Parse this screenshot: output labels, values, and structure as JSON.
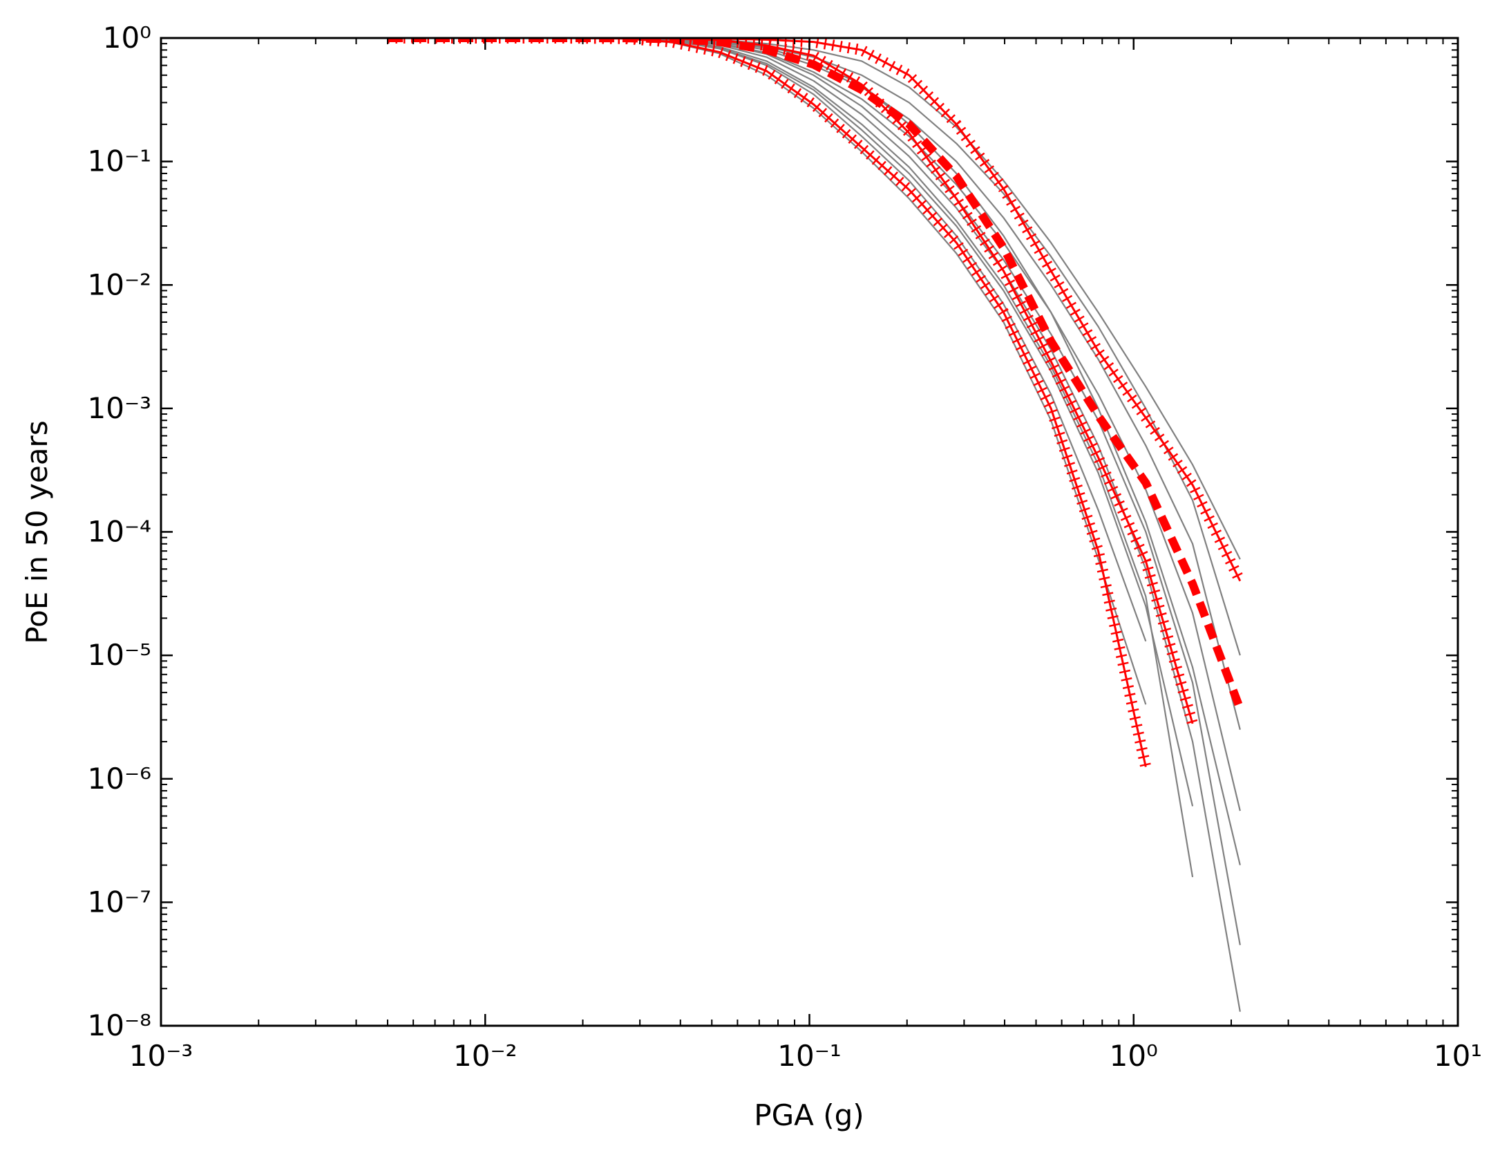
{
  "chart_data": {
    "type": "line",
    "xlabel": "PGA (g)",
    "ylabel": "PoE in 50 years",
    "xscale": "log",
    "yscale": "log",
    "xlim": [
      0.001,
      10
    ],
    "ylim": [
      1e-08,
      1
    ],
    "xticks": [
      {
        "value": 0.001,
        "label": "10⁻³"
      },
      {
        "value": 0.01,
        "label": "10⁻²"
      },
      {
        "value": 0.1,
        "label": "10⁻¹"
      },
      {
        "value": 1,
        "label": "10⁰"
      },
      {
        "value": 10,
        "label": "10¹"
      }
    ],
    "yticks": [
      {
        "value": 1e-08,
        "label": "10⁻⁸"
      },
      {
        "value": 1e-07,
        "label": "10⁻⁷"
      },
      {
        "value": 1e-06,
        "label": "10⁻⁶"
      },
      {
        "value": 1e-05,
        "label": "10⁻⁵"
      },
      {
        "value": 0.0001,
        "label": "10⁻⁴"
      },
      {
        "value": 0.001,
        "label": "10⁻³"
      },
      {
        "value": 0.01,
        "label": "10⁻²"
      },
      {
        "value": 0.1,
        "label": "10⁻¹"
      },
      {
        "value": 1,
        "label": "10⁰"
      }
    ],
    "x": [
      0.005,
      0.007,
      0.0098,
      0.0137,
      0.0192,
      0.0269,
      0.0376,
      0.0527,
      0.0738,
      0.103,
      0.145,
      0.203,
      0.284,
      0.397,
      0.556,
      0.778,
      1.09,
      1.52,
      2.13
    ],
    "series": [
      {
        "color": "#808080",
        "linestyle": "solid",
        "values": [
          1,
          1,
          1,
          1,
          0.999,
          0.99,
          0.92,
          0.75,
          0.5,
          0.27,
          0.12,
          0.05,
          0.018,
          0.005,
          0.0008,
          6e-05,
          4e-06,
          null,
          null
        ]
      },
      {
        "color": "#808080",
        "linestyle": "solid",
        "values": [
          1,
          1,
          1,
          1,
          1,
          0.995,
          0.95,
          0.82,
          0.6,
          0.35,
          0.16,
          0.07,
          0.025,
          0.007,
          0.0013,
          0.00015,
          1.3e-05,
          null,
          null
        ]
      },
      {
        "color": "#808080",
        "linestyle": "solid",
        "values": [
          1,
          1,
          1,
          1,
          1,
          0.996,
          0.96,
          0.85,
          0.65,
          0.4,
          0.2,
          0.09,
          0.033,
          0.01,
          0.0022,
          0.00035,
          3e-05,
          1.6e-07,
          null
        ]
      },
      {
        "color": "#808080",
        "linestyle": "solid",
        "values": [
          1,
          1,
          1,
          1,
          1,
          0.997,
          0.97,
          0.88,
          0.7,
          0.45,
          0.24,
          0.11,
          0.042,
          0.013,
          0.003,
          0.0005,
          5e-05,
          2e-06,
          1.3e-08
        ]
      },
      {
        "color": "#808080",
        "linestyle": "solid",
        "values": [
          1,
          1,
          1,
          1,
          1,
          0.998,
          0.98,
          0.9,
          0.74,
          0.5,
          0.28,
          0.13,
          0.05,
          0.016,
          0.004,
          0.0008,
          0.0001,
          6e-06,
          4.5e-08
        ]
      },
      {
        "color": "#808080",
        "linestyle": "solid",
        "values": [
          1,
          1,
          1,
          1,
          1,
          0.998,
          0.98,
          0.91,
          0.76,
          0.53,
          0.32,
          0.16,
          0.065,
          0.022,
          0.006,
          0.0013,
          0.00022,
          2.2e-05,
          5.5e-07
        ]
      },
      {
        "color": "#808080",
        "linestyle": "solid",
        "values": [
          1,
          1,
          1,
          1,
          1,
          0.999,
          0.985,
          0.93,
          0.8,
          0.6,
          0.4,
          0.22,
          0.1,
          0.035,
          0.01,
          0.0025,
          0.0005,
          8e-05,
          2.5e-06
        ]
      },
      {
        "color": "#808080",
        "linestyle": "solid",
        "values": [
          1,
          1,
          1,
          1,
          1,
          0.999,
          0.99,
          0.95,
          0.85,
          0.7,
          0.5,
          0.3,
          0.14,
          0.055,
          0.017,
          0.0046,
          0.001,
          0.00018,
          1e-05
        ]
      },
      {
        "color": "#808080",
        "linestyle": "solid",
        "values": [
          1,
          1,
          1,
          1,
          1,
          1,
          0.995,
          0.97,
          0.9,
          0.8,
          0.65,
          0.4,
          0.19,
          0.07,
          0.022,
          0.006,
          0.0015,
          0.00035,
          6e-05
        ]
      },
      {
        "color": "#808080",
        "linestyle": "solid",
        "values": [
          1,
          1,
          1,
          1,
          1,
          0.999,
          0.99,
          0.94,
          0.83,
          0.64,
          0.42,
          0.2,
          0.08,
          0.025,
          0.006,
          0.001,
          0.00012,
          8e-06,
          2e-07
        ]
      },
      {
        "color": "#808080",
        "linestyle": "solid",
        "values": [
          1,
          1,
          1,
          1,
          0.999,
          0.993,
          0.95,
          0.83,
          0.62,
          0.38,
          0.18,
          0.08,
          0.03,
          0.009,
          0.002,
          0.0003,
          2.5e-05,
          6e-07,
          null
        ]
      },
      {
        "color": "#ff0000",
        "linestyle": "hatched",
        "values": [
          1,
          1,
          1,
          1,
          0.999,
          0.99,
          0.93,
          0.77,
          0.54,
          0.29,
          0.13,
          0.059,
          0.022,
          0.006,
          0.001,
          7e-05,
          1.25e-06,
          null,
          null
        ]
      },
      {
        "color": "#ff0000",
        "linestyle": "hatched",
        "values": [
          1,
          1,
          1,
          1,
          1,
          0.999,
          0.99,
          0.96,
          0.87,
          0.72,
          0.42,
          0.17,
          0.05,
          0.013,
          0.0024,
          0.0004,
          5.8e-05,
          2.8e-06,
          null
        ]
      },
      {
        "color": "#ff0000",
        "linestyle": "hatched",
        "values": [
          1,
          1,
          1,
          1,
          1,
          1,
          1,
          0.99,
          0.97,
          0.93,
          0.8,
          0.5,
          0.2,
          0.06,
          0.013,
          0.0029,
          0.00084,
          0.00024,
          4e-05
        ]
      },
      {
        "color": "#ff0000",
        "linestyle": "dashed",
        "values": [
          1,
          1,
          1,
          1,
          1,
          0.998,
          0.98,
          0.93,
          0.8,
          0.61,
          0.38,
          0.2,
          0.076,
          0.02,
          0.0035,
          0.00087,
          0.00025,
          3.8e-05,
          3.7e-06
        ]
      }
    ]
  }
}
